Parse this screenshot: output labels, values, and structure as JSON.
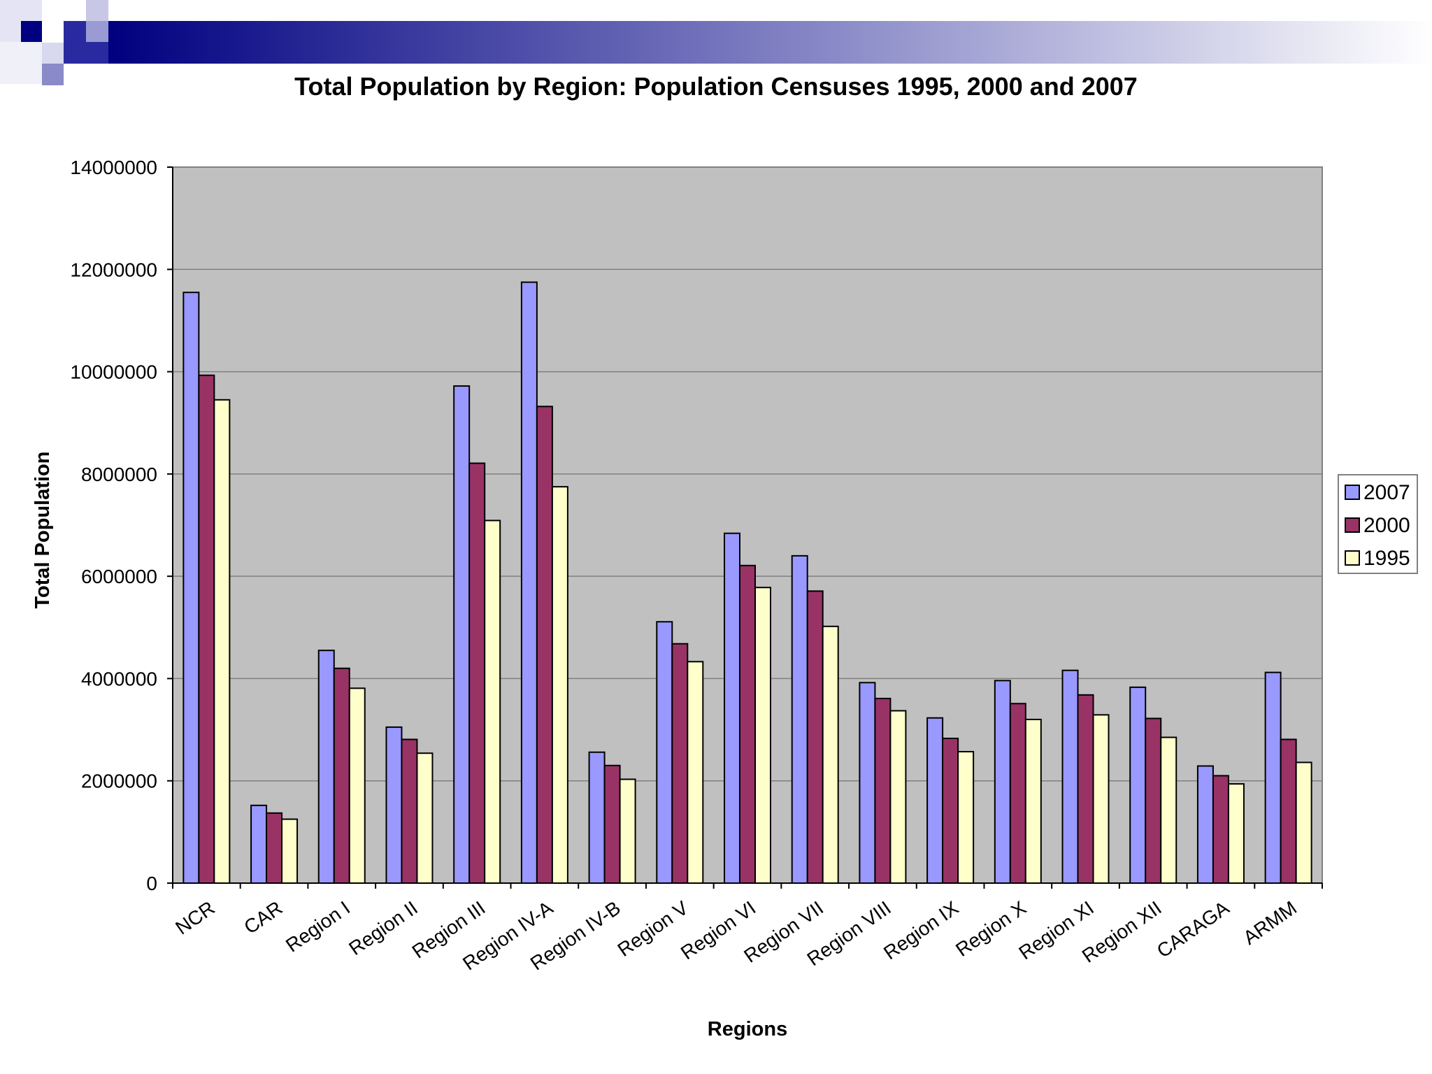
{
  "chart_data": {
    "type": "bar",
    "title": "Total Population by Region: Population Censuses 1995, 2000 and 2007",
    "xlabel": "Regions",
    "ylabel": "Total Population",
    "ylim": [
      0,
      14000000
    ],
    "yticks": [
      0,
      2000000,
      4000000,
      6000000,
      8000000,
      10000000,
      12000000,
      14000000
    ],
    "grid": true,
    "legend_position": "right",
    "categories": [
      "NCR",
      "CAR",
      "Region I",
      "Region II",
      "Region III",
      "Region IV-A",
      "Region IV-B",
      "Region V",
      "Region VI",
      "Region VII",
      "Region VIII",
      "Region IX",
      "Region X",
      "Region XI",
      "Region XII",
      "CARAGA",
      "ARMM"
    ],
    "series": [
      {
        "name": "2007",
        "color": "#9999ff",
        "values": [
          11550000,
          1520000,
          4550000,
          3050000,
          9720000,
          11750000,
          2560000,
          5110000,
          6840000,
          6400000,
          3920000,
          3230000,
          3960000,
          4160000,
          3830000,
          2290000,
          4120000
        ]
      },
      {
        "name": "2000",
        "color": "#993366",
        "values": [
          9930000,
          1370000,
          4200000,
          2810000,
          8210000,
          9320000,
          2300000,
          4680000,
          6210000,
          5710000,
          3610000,
          2830000,
          3510000,
          3680000,
          3220000,
          2100000,
          2810000
        ]
      },
      {
        "name": "1995",
        "color": "#ffffcc",
        "values": [
          9450000,
          1250000,
          3810000,
          2540000,
          7090000,
          7750000,
          2030000,
          4330000,
          5780000,
          5020000,
          3370000,
          2570000,
          3200000,
          3290000,
          2850000,
          1940000,
          2360000
        ]
      }
    ],
    "plot_background": "#c0c0c0"
  }
}
